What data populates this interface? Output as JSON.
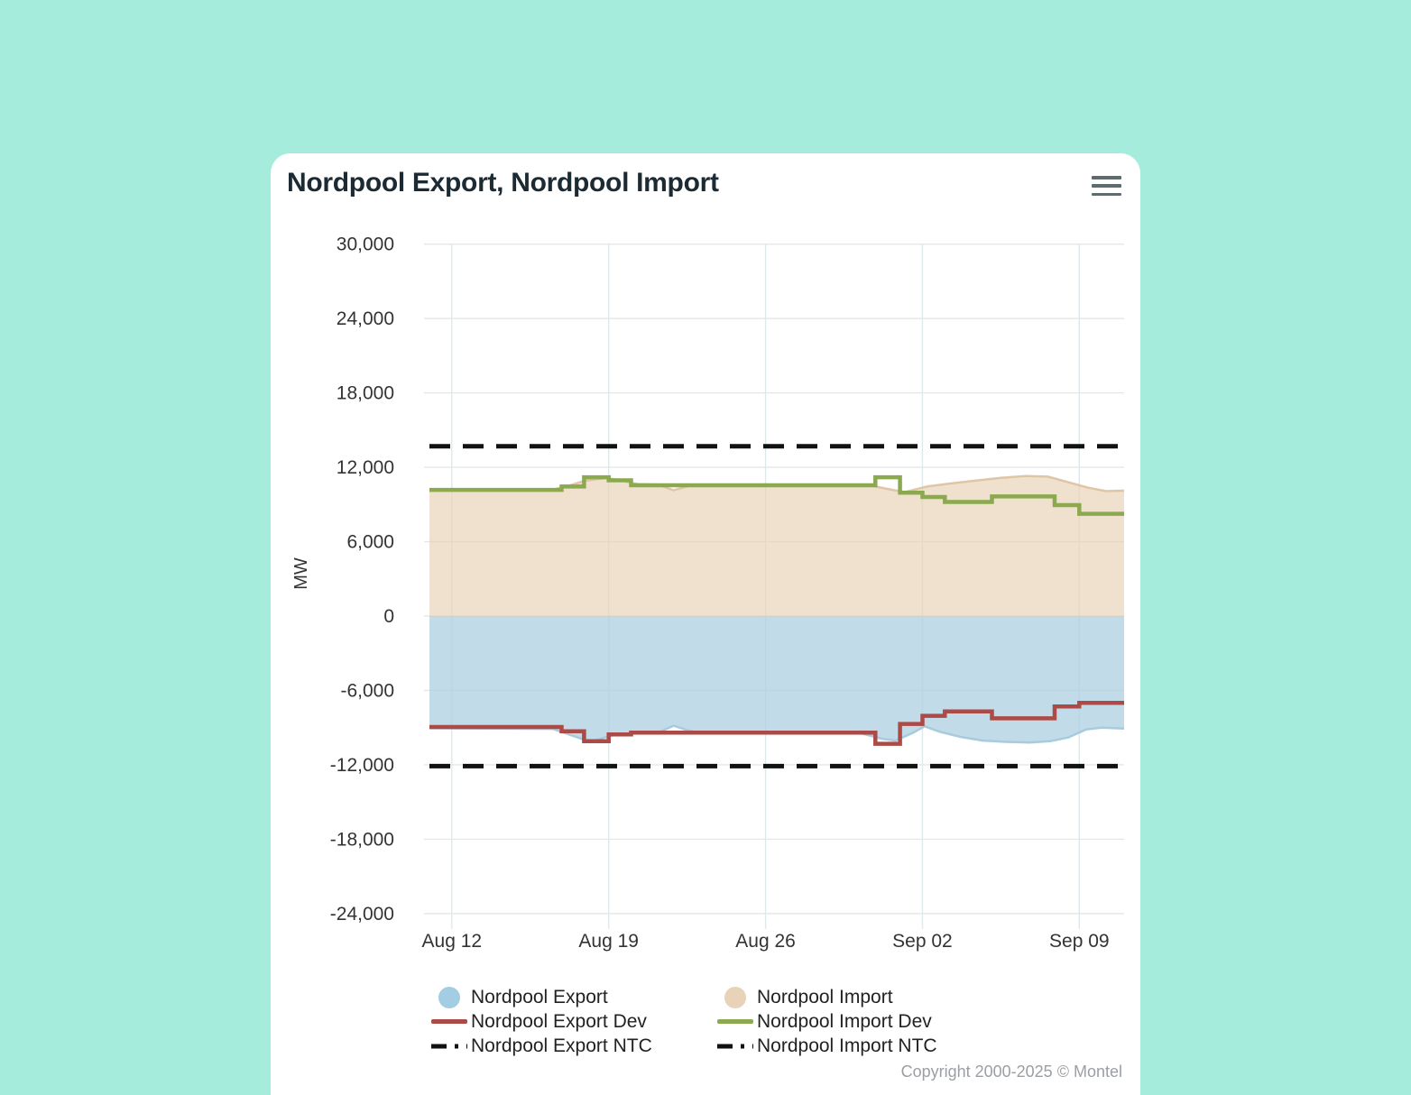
{
  "header": {
    "title": "Nordpool Export, Nordpool Import"
  },
  "footer": {
    "copyright": "Copyright 2000-2025 © Montel"
  },
  "colors": {
    "background": "#a5ecdd",
    "card": "#ffffff",
    "title_text": "#1c2a33",
    "tick_text": "#333333",
    "grid_horizontal": "#e7e7e7",
    "grid_vertical": "#dfe8ea",
    "export_fill": "#aecfe2",
    "export_edge": "#a2c8da",
    "import_fill": "#e7cfb1",
    "import_edge": "#ddc19e",
    "export_dev_line": "#ab4a46",
    "import_dev_line": "#8ba94f",
    "ntc_line": "#111111"
  },
  "legend": {
    "columns": [
      [
        {
          "label": "Nordpool Export",
          "symbol": "circle",
          "color": "#a3cde2"
        },
        {
          "label": "Nordpool Export Dev",
          "symbol": "line",
          "color": "#ab4a46"
        },
        {
          "label": "Nordpool Export NTC",
          "symbol": "dash",
          "color": "#111111"
        }
      ],
      [
        {
          "label": "Nordpool Import",
          "symbol": "circle",
          "color": "#e8d2b8"
        },
        {
          "label": "Nordpool Import Dev",
          "symbol": "line",
          "color": "#8ba94f"
        },
        {
          "label": "Nordpool Import NTC",
          "symbol": "dash",
          "color": "#111111"
        }
      ]
    ]
  },
  "chart_data": {
    "type": "area",
    "title": "Nordpool Export, Nordpool Import",
    "ylabel": "MW",
    "ylim": [
      -24000,
      30000
    ],
    "ytick_values": [
      30000,
      24000,
      18000,
      12000,
      6000,
      0,
      -6000,
      -12000,
      -18000,
      -24000
    ],
    "xlim_days": [
      0,
      31
    ],
    "xticks": [
      {
        "day": 1,
        "label": "Aug 12"
      },
      {
        "day": 8,
        "label": "Aug 19"
      },
      {
        "day": 15,
        "label": "Aug 26"
      },
      {
        "day": 22,
        "label": "Sep 02"
      },
      {
        "day": 29,
        "label": "Sep 09"
      }
    ],
    "grid": true,
    "legend_position": "bottom",
    "series": [
      {
        "name": "Nordpool Import",
        "type": "area",
        "fill": "#e7cfb1",
        "fill_opacity": 0.62,
        "edge": "#ddc19e",
        "points": [
          [
            0,
            10150
          ],
          [
            5.5,
            10200
          ],
          [
            6.2,
            10500
          ],
          [
            6.9,
            10900
          ],
          [
            7.9,
            11150
          ],
          [
            8.6,
            10900
          ],
          [
            9.3,
            10650
          ],
          [
            10.2,
            10600
          ],
          [
            10.9,
            10150
          ],
          [
            11.6,
            10500
          ],
          [
            12.5,
            10600
          ],
          [
            19.5,
            10600
          ],
          [
            20.3,
            10300
          ],
          [
            21.2,
            10000
          ],
          [
            22.2,
            10450
          ],
          [
            23.3,
            10700
          ],
          [
            24.5,
            10950
          ],
          [
            25.5,
            11150
          ],
          [
            26.6,
            11300
          ],
          [
            27.6,
            11250
          ],
          [
            28.5,
            10800
          ],
          [
            29.4,
            10350
          ],
          [
            30.2,
            10080
          ],
          [
            31,
            10120
          ]
        ]
      },
      {
        "name": "Nordpool Export",
        "type": "area",
        "fill": "#aecfe2",
        "fill_opacity": 0.75,
        "edge": "#a2c8da",
        "points": [
          [
            0,
            -9050
          ],
          [
            5.5,
            -9100
          ],
          [
            6.3,
            -9600
          ],
          [
            7.2,
            -10150
          ],
          [
            8.1,
            -9650
          ],
          [
            9,
            -9450
          ],
          [
            10.2,
            -9400
          ],
          [
            10.9,
            -8850
          ],
          [
            11.5,
            -9200
          ],
          [
            12.2,
            -9480
          ],
          [
            19.3,
            -9480
          ],
          [
            20.2,
            -9900
          ],
          [
            20.8,
            -10050
          ],
          [
            21.6,
            -9400
          ],
          [
            22.1,
            -8900
          ],
          [
            22.8,
            -9350
          ],
          [
            23.7,
            -9750
          ],
          [
            24.7,
            -10050
          ],
          [
            25.7,
            -10150
          ],
          [
            26.8,
            -10200
          ],
          [
            27.7,
            -10100
          ],
          [
            28.5,
            -9800
          ],
          [
            29.3,
            -9150
          ],
          [
            30,
            -9000
          ],
          [
            31,
            -9070
          ]
        ]
      },
      {
        "name": "Nordpool Import NTC",
        "type": "hline",
        "color": "#111111",
        "dash": [
          23,
          14
        ],
        "value": 13700
      },
      {
        "name": "Nordpool Export NTC",
        "type": "hline",
        "color": "#111111",
        "dash": [
          23,
          14
        ],
        "value": -12100
      },
      {
        "name": "Nordpool Import Dev",
        "type": "step",
        "color": "#8ba94f",
        "points": [
          [
            0,
            10180
          ],
          [
            5.9,
            10450
          ],
          [
            6.9,
            11200
          ],
          [
            8,
            10950
          ],
          [
            9,
            10550
          ],
          [
            19.9,
            11200
          ],
          [
            21,
            9950
          ],
          [
            22,
            9600
          ],
          [
            23,
            9200
          ],
          [
            25.1,
            9650
          ],
          [
            27.9,
            8950
          ],
          [
            29,
            8250
          ]
        ]
      },
      {
        "name": "Nordpool Export Dev",
        "type": "step",
        "color": "#ab4a46",
        "points": [
          [
            0,
            -8950
          ],
          [
            5.9,
            -9300
          ],
          [
            6.9,
            -10100
          ],
          [
            8,
            -9550
          ],
          [
            9,
            -9400
          ],
          [
            19.9,
            -10300
          ],
          [
            21,
            -8700
          ],
          [
            22,
            -8050
          ],
          [
            23,
            -7700
          ],
          [
            25.1,
            -8250
          ],
          [
            27.9,
            -7300
          ],
          [
            29,
            -7000
          ]
        ]
      }
    ]
  }
}
